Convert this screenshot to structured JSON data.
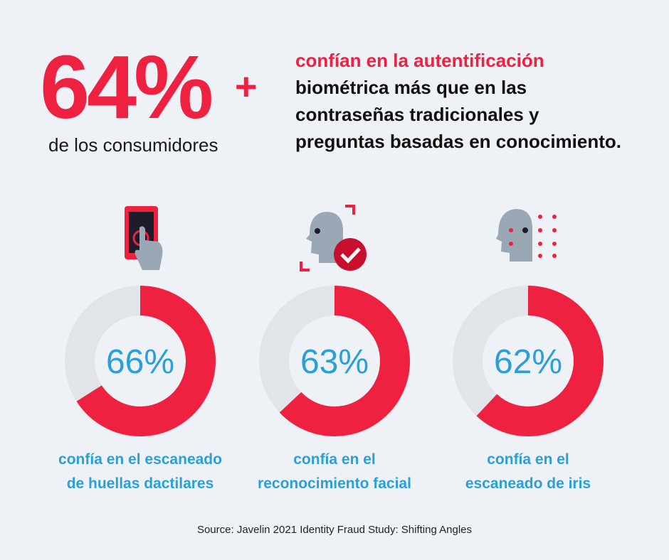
{
  "header": {
    "stat": "64%",
    "plus": "+",
    "stat_caption": "de los consumidores",
    "highlight": "confían en la autentificación",
    "lines": [
      "biométrica más que en las",
      "contraseñas tradicionales y",
      "preguntas basadas en conocimiento."
    ]
  },
  "chart_data": [
    {
      "type": "donut",
      "values": [
        66
      ],
      "value_labels": [
        "66%"
      ],
      "color": "#ee2240",
      "track_color": "#e1e5e9",
      "caption": [
        "confía en el escaneado",
        "de huellas dactilares"
      ]
    },
    {
      "type": "donut",
      "values": [
        63
      ],
      "value_labels": [
        "63%"
      ],
      "color": "#ee2240",
      "track_color": "#e1e5e9",
      "caption": [
        "confía en el",
        "reconocimiento facial"
      ]
    },
    {
      "type": "donut",
      "values": [
        62
      ],
      "value_labels": [
        "62%"
      ],
      "color": "#ee2240",
      "track_color": "#e1e5e9",
      "caption": [
        "confía en el",
        "escaneado de iris"
      ]
    }
  ],
  "source": "Source: Javelin 2021 Identity Fraud Study: Shifting Angles"
}
